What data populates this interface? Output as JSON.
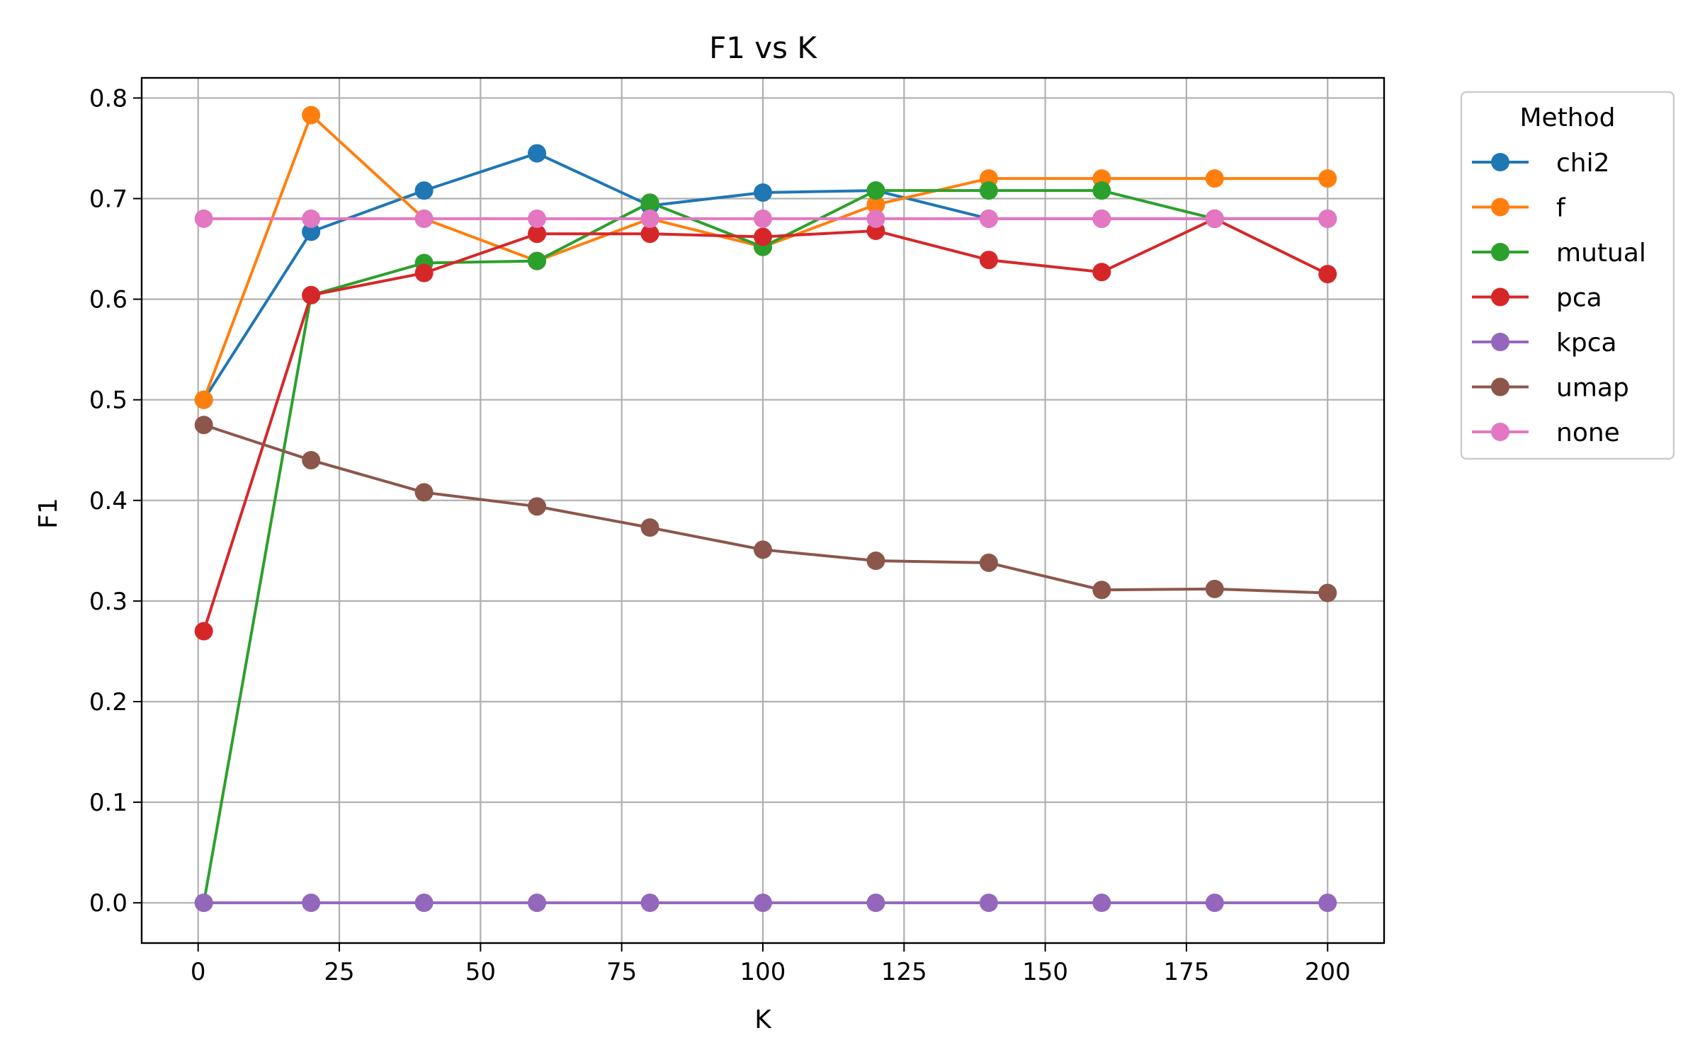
{
  "chart_data": {
    "type": "line",
    "title": "F1 vs K",
    "xlabel": "K",
    "ylabel": "F1",
    "xlim": [
      -10,
      210
    ],
    "ylim": [
      -0.04,
      0.82
    ],
    "xticks": [
      0,
      25,
      50,
      75,
      100,
      125,
      150,
      175,
      200
    ],
    "yticks": [
      0.0,
      0.1,
      0.2,
      0.3,
      0.4,
      0.5,
      0.6,
      0.7,
      0.8
    ],
    "xtick_labels": [
      "0",
      "25",
      "50",
      "75",
      "100",
      "125",
      "150",
      "175",
      "200"
    ],
    "ytick_labels": [
      "0.0",
      "0.1",
      "0.2",
      "0.3",
      "0.4",
      "0.5",
      "0.6",
      "0.7",
      "0.8"
    ],
    "grid": true,
    "legend": {
      "title": "Method",
      "placement": "outside-top-right"
    },
    "x": [
      1,
      20,
      40,
      60,
      80,
      100,
      120,
      140,
      160,
      180,
      200
    ],
    "series": [
      {
        "name": "chi2",
        "color": "#1f77b4",
        "values": [
          0.5,
          0.667,
          0.708,
          0.745,
          0.693,
          0.706,
          0.708,
          0.68,
          0.68,
          0.68,
          0.68
        ]
      },
      {
        "name": "f",
        "color": "#ff7f0e",
        "values": [
          0.5,
          0.783,
          0.68,
          0.638,
          0.68,
          0.652,
          0.694,
          0.72,
          0.72,
          0.72,
          0.72
        ]
      },
      {
        "name": "mutual",
        "color": "#2ca02c",
        "values": [
          0.0,
          0.604,
          0.636,
          0.638,
          0.696,
          0.652,
          0.708,
          0.708,
          0.708,
          0.68,
          0.68
        ]
      },
      {
        "name": "pca",
        "color": "#d62728",
        "values": [
          0.27,
          0.604,
          0.626,
          0.665,
          0.665,
          0.662,
          0.668,
          0.639,
          0.627,
          0.68,
          0.625
        ]
      },
      {
        "name": "kpca",
        "color": "#9467bd",
        "values": [
          0.0,
          0.0,
          0.0,
          0.0,
          0.0,
          0.0,
          0.0,
          0.0,
          0.0,
          0.0,
          0.0
        ]
      },
      {
        "name": "umap",
        "color": "#8c564b",
        "values": [
          0.475,
          0.44,
          0.408,
          0.394,
          0.373,
          0.351,
          0.34,
          0.338,
          0.311,
          0.312,
          0.308
        ]
      },
      {
        "name": "none",
        "color": "#e377c2",
        "values": [
          0.68,
          0.68,
          0.68,
          0.68,
          0.68,
          0.68,
          0.68,
          0.68,
          0.68,
          0.68,
          0.68
        ]
      }
    ]
  }
}
